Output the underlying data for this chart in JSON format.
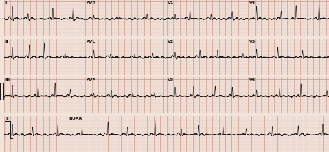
{
  "bg_color": "#f2e4db",
  "grid_minor_color": "#e0c4b8",
  "grid_major_color": "#c89080",
  "line_color": "#1c1c1c",
  "fig_width": 4.74,
  "fig_height": 2.21,
  "dpi": 100,
  "label_fontsize": 4.5,
  "label_color": "#111111",
  "row_gap_color": "#d8c0b0"
}
